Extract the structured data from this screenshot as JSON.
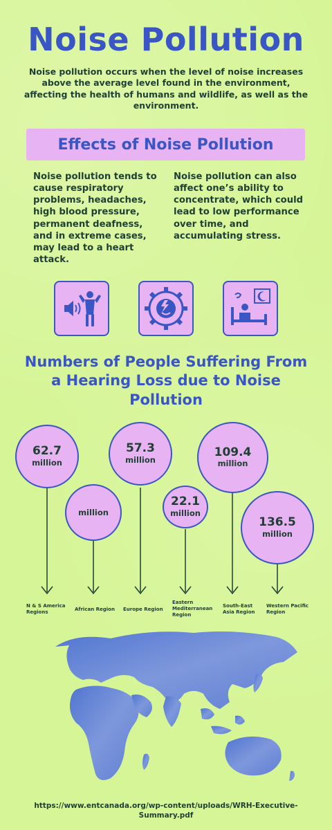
{
  "title": "Noise Pollution",
  "intro": "Noise pollution occurs when the level of noise increases above the average level found in the environment, affecting the health of humans and wildlife, as well as the environment.",
  "effects": {
    "heading": "Effects of Noise Pollution",
    "left_text": "Noise pollution tends to cause respiratory problems, headaches, high blood pressure, permanent deafness, and in extreme cases, may lead to a heart attack.",
    "right_text": "Noise pollution can also affect one’s ability to concentrate, which could lead to low performance over time, and accumulating stress.",
    "icons": [
      "loud-person-icon",
      "stressed-head-gear-icon",
      "sleepless-bed-icon"
    ]
  },
  "numbers": {
    "heading": "Numbers of People Suffering From a Hearing Loss due to Noise Pollution",
    "unit": "million",
    "regions": [
      {
        "value": "62.7",
        "label": "N & S America Regions"
      },
      {
        "value": "",
        "label": "African Region"
      },
      {
        "value": "57.3",
        "label": "Europe Region"
      },
      {
        "value": "22.1",
        "label": "Eastern Mediterranean Region"
      },
      {
        "value": "109.4",
        "label": "South-East Asia Region"
      },
      {
        "value": "136.5",
        "label": "Western Pacific Region"
      }
    ]
  },
  "colors": {
    "background": "#d6f596",
    "accent": "#3a55c4",
    "bubble": "#e7b3f2",
    "text": "#1f3f33"
  },
  "source": "https://www.entcanada.org/wp-content/uploads/WRH-Executive-Summary.pdf"
}
